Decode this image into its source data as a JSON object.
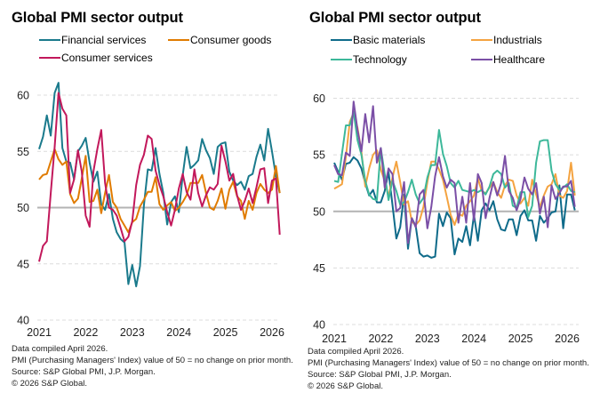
{
  "chart_data": [
    {
      "type": "line",
      "title": "Global PMI sector output",
      "xlabel": "",
      "ylabel": "",
      "ylim": [
        40,
        61
      ],
      "yticks": [
        40,
        45,
        50,
        55,
        60
      ],
      "xticks": [
        "2021",
        "2022",
        "2023",
        "2024",
        "2025",
        "2026"
      ],
      "x_start": "2021-01",
      "x_frequency": "monthly",
      "reference_line": 50,
      "grid": "horizontal dashed",
      "legend": "top",
      "series": [
        {
          "name": "Financial services",
          "color": "#1a7a8c",
          "values": [
            55.2,
            56.3,
            58.2,
            56.4,
            60.2,
            61.1,
            55.3,
            54.1,
            54.0,
            52.5,
            55.0,
            55.5,
            56.2,
            54.0,
            52.3,
            53.2,
            50.3,
            49.8,
            51.2,
            49.0,
            47.8,
            47.2,
            46.9,
            43.2,
            44.9,
            43.0,
            44.8,
            50.2,
            53.4,
            53.3,
            55.3,
            53.0,
            51.3,
            48.5,
            50.5,
            51.0,
            49.6,
            52.9,
            55.4,
            53.5,
            53.8,
            54.2,
            56.1,
            55.1,
            54.4,
            53.0,
            55.4,
            55.7,
            55.8,
            53.2,
            52.4,
            52.0,
            52.3,
            51.6,
            52.8,
            53.0,
            54.5,
            55.6,
            54.2,
            57.0,
            55.0,
            52.8,
            51.3
          ]
        },
        {
          "name": "Consumer goods",
          "color": "#e07b00",
          "values": [
            52.5,
            52.9,
            53.0,
            54.1,
            55.2,
            54.3,
            53.8,
            54.1,
            51.2,
            50.4,
            50.8,
            52.6,
            54.6,
            50.5,
            50.6,
            51.6,
            49.5,
            51.3,
            52.9,
            50.5,
            50.0,
            49.0,
            48.4,
            47.8,
            48.7,
            49.0,
            50.1,
            50.7,
            51.4,
            51.4,
            52.7,
            50.3,
            49.8,
            50.2,
            50.5,
            49.7,
            50.0,
            50.5,
            51.1,
            52.2,
            52.2,
            52.2,
            52.9,
            51.3,
            50.0,
            49.8,
            50.6,
            51.7,
            49.9,
            51.6,
            52.3,
            51.0,
            50.6,
            49.0,
            50.6,
            49.8,
            51.3,
            52.1,
            51.6,
            51.3,
            51.6,
            53.7,
            51.3
          ]
        },
        {
          "name": "Consumer services",
          "color": "#c2185b",
          "values": [
            45.2,
            46.6,
            47.0,
            51.3,
            55.4,
            60.2,
            58.8,
            58.2,
            51.3,
            52.5,
            55.1,
            53.2,
            49.3,
            48.3,
            53.2,
            55.2,
            56.9,
            52.2,
            50.0,
            49.8,
            49.3,
            48.2,
            47.0,
            47.4,
            48.8,
            52.0,
            53.8,
            54.7,
            56.4,
            56.1,
            53.3,
            52.0,
            51.0,
            49.6,
            48.4,
            49.8,
            51.7,
            53.0,
            51.4,
            50.7,
            53.4,
            51.3,
            50.1,
            51.1,
            51.8,
            51.6,
            52.1,
            55.5,
            54.1,
            52.4,
            53.0,
            51.1,
            49.8,
            50.6,
            51.7,
            50.4,
            51.8,
            53.4,
            53.5,
            50.4,
            52.4,
            52.6,
            47.6
          ]
        }
      ]
    },
    {
      "type": "line",
      "title": "Global PMI sector output",
      "xlabel": "",
      "ylabel": "",
      "ylim": [
        40,
        60.5
      ],
      "yticks": [
        40,
        45,
        50,
        55,
        60
      ],
      "xticks": [
        "2021",
        "2022",
        "2023",
        "2024",
        "2025",
        "2026"
      ],
      "x_start": "2021-01",
      "x_frequency": "monthly",
      "reference_line": 50,
      "grid": "horizontal dashed",
      "legend": "top",
      "series": [
        {
          "name": "Basic materials",
          "color": "#0f6b8a",
          "values": [
            54.3,
            53.5,
            52.8,
            54.2,
            54.3,
            54.8,
            54.5,
            53.8,
            52.5,
            51.4,
            51.9,
            50.8,
            50.8,
            51.8,
            53.5,
            50.6,
            47.6,
            48.6,
            51.5,
            46.7,
            49.4,
            48.7,
            46.3,
            46.0,
            46.1,
            45.9,
            46.0,
            49.8,
            48.7,
            49.9,
            49.4,
            46.2,
            47.6,
            47.3,
            48.7,
            47.0,
            49.7,
            47.4,
            50.1,
            50.7,
            50.1,
            50.9,
            49.3,
            48.4,
            48.3,
            49.3,
            49.3,
            47.9,
            49.6,
            50.1,
            49.2,
            49.2,
            47.4,
            49.6,
            49.0,
            49.4,
            49.9,
            50.0,
            52.3,
            48.5,
            51.5,
            51.5,
            50.1
          ]
        },
        {
          "name": "Industrials",
          "color": "#f4a340",
          "values": [
            52.0,
            52.2,
            52.4,
            54.8,
            57.9,
            58.7,
            57.4,
            55.3,
            52.2,
            53.8,
            55.0,
            55.4,
            53.7,
            52.7,
            51.3,
            53.0,
            54.4,
            52.6,
            50.6,
            50.9,
            49.1,
            48.8,
            49.2,
            50.4,
            52.6,
            54.4,
            54.4,
            53.7,
            52.8,
            51.3,
            49.7,
            48.8,
            49.8,
            49.6,
            50.5,
            50.9,
            51.4,
            52.9,
            51.8,
            51.6,
            52.1,
            52.6,
            51.7,
            51.2,
            52.3,
            52.8,
            52.7,
            51.4,
            50.7,
            51.2,
            50.5,
            52.8,
            51.5,
            50.4,
            51.4,
            52.2,
            52.4,
            53.3,
            51.4,
            51.2,
            51.8,
            54.3,
            51.4
          ]
        },
        {
          "name": "Technology",
          "color": "#3db89a",
          "values": [
            52.7,
            52.6,
            55.1,
            57.6,
            57.6,
            58.8,
            56.3,
            55.0,
            52.7,
            51.5,
            51.1,
            51.0,
            55.6,
            53.3,
            51.0,
            52.7,
            51.8,
            50.6,
            50.8,
            51.7,
            52.8,
            51.5,
            50.7,
            51.2,
            53.0,
            54.1,
            54.1,
            57.2,
            55.1,
            54.0,
            52.5,
            52.1,
            52.7,
            51.9,
            51.8,
            51.7,
            51.9,
            51.7,
            51.9,
            51.5,
            52.2,
            53.3,
            53.6,
            53.3,
            52.1,
            52.5,
            50.5,
            50.3,
            51.7,
            51.7,
            49.5,
            50.5,
            54.3,
            56.2,
            56.3,
            56.3,
            53.6,
            52.4,
            51.9,
            52.1,
            52.4,
            51.8,
            51.7
          ]
        },
        {
          "name": "Healthcare",
          "color": "#7b4fa6",
          "values": [
            54.1,
            53.3,
            53.2,
            55.2,
            54.9,
            59.7,
            57.2,
            55.3,
            58.6,
            56.1,
            59.3,
            54.3,
            55.6,
            52.1,
            53.8,
            53.3,
            50.0,
            50.3,
            52.6,
            47.2,
            49.4,
            48.6,
            51.5,
            51.9,
            48.5,
            50.4,
            53.1,
            54.8,
            53.1,
            52.1,
            52.8,
            52.5,
            49.0,
            51.3,
            49.0,
            52.5,
            49.2,
            53.3,
            52.5,
            49.4,
            51.2,
            52.6,
            51.4,
            52.5,
            54.9,
            51.8,
            51.2,
            50.1,
            51.1,
            53.0,
            52.0,
            51.5,
            52.5,
            49.8,
            51.3,
            48.6,
            52.3,
            51.1,
            51.6,
            52.2,
            52.2,
            52.7,
            50.4
          ]
        }
      ]
    }
  ],
  "left": {
    "title": "Global PMI sector output",
    "legend": [
      "Financial services",
      "Consumer goods",
      "Consumer services"
    ],
    "notes": [
      "Data compiled April 2026.",
      "PMI (Purchasing Managers' Index) value of 50 = no change on prior month.",
      "Source: S&P Global PMI, J.P. Morgan.",
      "© 2026 S&P Global."
    ]
  },
  "right": {
    "title": "Global PMI sector output",
    "legend": [
      "Basic materials",
      "Industrials",
      "Technology",
      "Healthcare"
    ],
    "notes": [
      "Data compiled April 2026.",
      "PMI (Purchasing Managers' Index) value of 50 = no change on prior month.",
      "Source: S&P Global PMI, J.P. Morgan.",
      "© 2026 S&P Global."
    ]
  }
}
